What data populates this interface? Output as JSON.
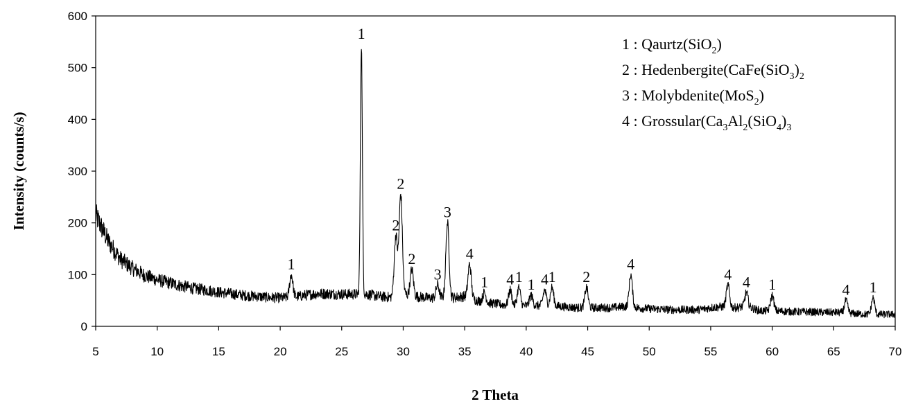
{
  "chart_data": {
    "type": "line",
    "xlabel": "2 Theta",
    "ylabel": "Intensity (counts/s)",
    "xlim": [
      5,
      70
    ],
    "ylim": [
      0,
      600
    ],
    "x_ticks": [
      5,
      10,
      15,
      20,
      25,
      30,
      35,
      40,
      45,
      50,
      55,
      60,
      65,
      70
    ],
    "y_ticks": [
      0,
      100,
      200,
      300,
      400,
      500,
      600
    ],
    "grid": false,
    "legend_position": "top-right",
    "series_color": "#000000",
    "baseline": [
      [
        5,
        215
      ],
      [
        6,
        165
      ],
      [
        7,
        130
      ],
      [
        8,
        112
      ],
      [
        9,
        98
      ],
      [
        10,
        90
      ],
      [
        11,
        84
      ],
      [
        12,
        78
      ],
      [
        13,
        73
      ],
      [
        14,
        70
      ],
      [
        15,
        66
      ],
      [
        16,
        63
      ],
      [
        17,
        60
      ],
      [
        18,
        58
      ],
      [
        19,
        56
      ],
      [
        20,
        55
      ],
      [
        21,
        56
      ],
      [
        22,
        60
      ],
      [
        23,
        63
      ],
      [
        24,
        63
      ],
      [
        25,
        62
      ],
      [
        26,
        62
      ],
      [
        27,
        62
      ],
      [
        28,
        58
      ],
      [
        29,
        56
      ],
      [
        30,
        62
      ],
      [
        31,
        58
      ],
      [
        32,
        55
      ],
      [
        33,
        55
      ],
      [
        34,
        55
      ],
      [
        35,
        58
      ],
      [
        36,
        50
      ],
      [
        37,
        45
      ],
      [
        38,
        42
      ],
      [
        39,
        40
      ],
      [
        40,
        40
      ],
      [
        41,
        40
      ],
      [
        42,
        40
      ],
      [
        43,
        38
      ],
      [
        44,
        36
      ],
      [
        45,
        36
      ],
      [
        46,
        36
      ],
      [
        47,
        36
      ],
      [
        48,
        38
      ],
      [
        49,
        36
      ],
      [
        50,
        34
      ],
      [
        51,
        33
      ],
      [
        52,
        32
      ],
      [
        53,
        32
      ],
      [
        54,
        32
      ],
      [
        55,
        36
      ],
      [
        56,
        38
      ],
      [
        57,
        36
      ],
      [
        58,
        38
      ],
      [
        59,
        30
      ],
      [
        60,
        30
      ],
      [
        61,
        29
      ],
      [
        62,
        28
      ],
      [
        63,
        28
      ],
      [
        64,
        27
      ],
      [
        65,
        27
      ],
      [
        66,
        26
      ],
      [
        67,
        24
      ],
      [
        68,
        23
      ],
      [
        69,
        23
      ],
      [
        70,
        23
      ]
    ],
    "peaks": [
      {
        "x": 20.9,
        "y": 100,
        "label": "1"
      },
      {
        "x": 26.6,
        "y": 545,
        "label": "1"
      },
      {
        "x": 29.4,
        "y": 175,
        "label": "2"
      },
      {
        "x": 29.8,
        "y": 255,
        "label": "2"
      },
      {
        "x": 30.7,
        "y": 110,
        "label": "2"
      },
      {
        "x": 32.8,
        "y": 80,
        "label": "3"
      },
      {
        "x": 33.6,
        "y": 200,
        "label": "3"
      },
      {
        "x": 35.4,
        "y": 120,
        "label": "4"
      },
      {
        "x": 36.6,
        "y": 65,
        "label": "1"
      },
      {
        "x": 38.7,
        "y": 70,
        "label": "4"
      },
      {
        "x": 39.4,
        "y": 75,
        "label": "1"
      },
      {
        "x": 40.4,
        "y": 60,
        "label": "1"
      },
      {
        "x": 41.5,
        "y": 70,
        "label": "4"
      },
      {
        "x": 42.1,
        "y": 75,
        "label": "1"
      },
      {
        "x": 44.9,
        "y": 75,
        "label": "2"
      },
      {
        "x": 48.5,
        "y": 100,
        "label": "4"
      },
      {
        "x": 56.4,
        "y": 80,
        "label": "4"
      },
      {
        "x": 57.9,
        "y": 65,
        "label": "4"
      },
      {
        "x": 60.0,
        "y": 60,
        "label": "1"
      },
      {
        "x": 66.0,
        "y": 50,
        "label": "4"
      },
      {
        "x": 68.2,
        "y": 55,
        "label": "1"
      }
    ],
    "legend": [
      [
        {
          "t": "1 : Qaurtz(SiO"
        },
        {
          "t": "2",
          "sub": true
        },
        {
          "t": ")"
        }
      ],
      [
        {
          "t": "2 : Hedenbergite(CaFe(SiO"
        },
        {
          "t": "3",
          "sub": true
        },
        {
          "t": ")"
        },
        {
          "t": "2",
          "sub": true
        }
      ],
      [
        {
          "t": "3 : Molybdenite(MoS"
        },
        {
          "t": "2",
          "sub": true
        },
        {
          "t": ")"
        }
      ],
      [
        {
          "t": "4 : Grossular(Ca"
        },
        {
          "t": "3",
          "sub": true
        },
        {
          "t": "Al"
        },
        {
          "t": "2",
          "sub": true
        },
        {
          "t": "(SiO"
        },
        {
          "t": "4",
          "sub": true
        },
        {
          "t": ")"
        },
        {
          "t": "3",
          "sub": true
        }
      ]
    ]
  }
}
